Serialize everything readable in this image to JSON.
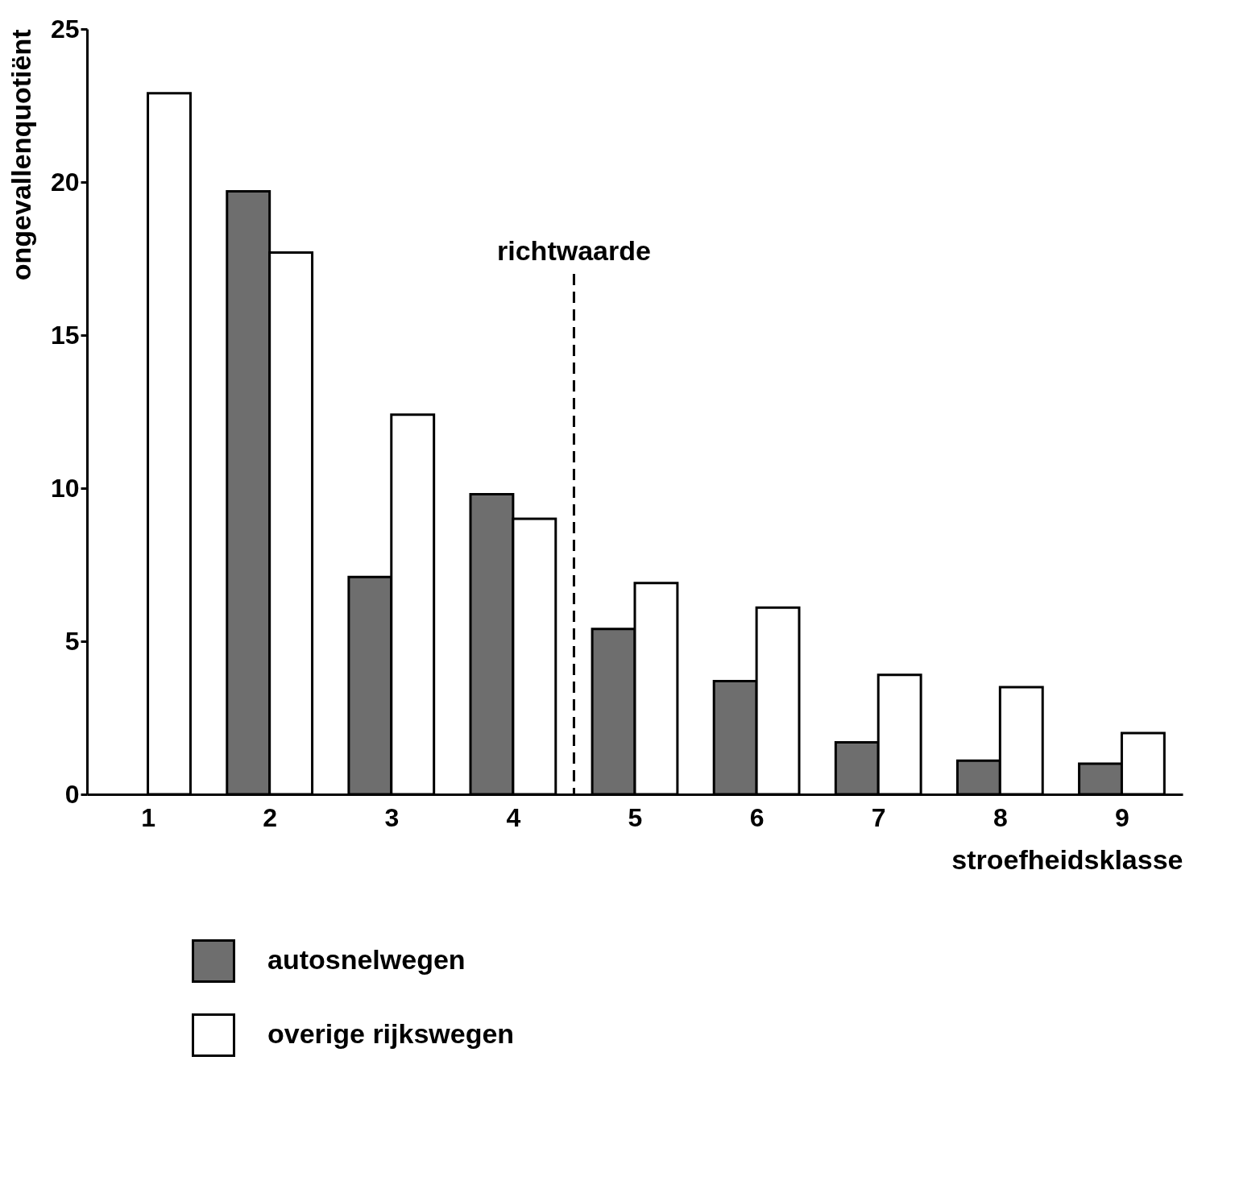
{
  "chart_data": {
    "type": "bar",
    "xlabel": "stroefheidsklasse",
    "ylabel": "ongevallenquotiënt",
    "x": [
      1,
      2,
      3,
      4,
      5,
      6,
      7,
      8,
      9
    ],
    "xlim": [
      0.5,
      9.5
    ],
    "xticks": [
      1,
      2,
      3,
      4,
      5,
      6,
      7,
      8,
      9
    ],
    "ylim": [
      0,
      25
    ],
    "yticks": [
      0,
      5,
      10,
      15,
      20,
      25
    ],
    "grid": false,
    "legend": "bottom left",
    "series": [
      {
        "name": "autosnelwegen",
        "color": "#6e6e6e",
        "values": [
          null,
          19.7,
          7.1,
          9.8,
          5.4,
          3.7,
          1.7,
          1.1,
          1.0
        ]
      },
      {
        "name": "overige  rijkswegen",
        "color": "#ffffff",
        "values": [
          22.9,
          17.7,
          12.4,
          9.0,
          6.9,
          6.1,
          3.9,
          3.5,
          2.0
        ]
      }
    ],
    "ref_lines": [
      {
        "axis": "x",
        "value": 4.5,
        "label": "richtwaarde",
        "line_style": "dashed",
        "color": "#000000"
      }
    ]
  }
}
